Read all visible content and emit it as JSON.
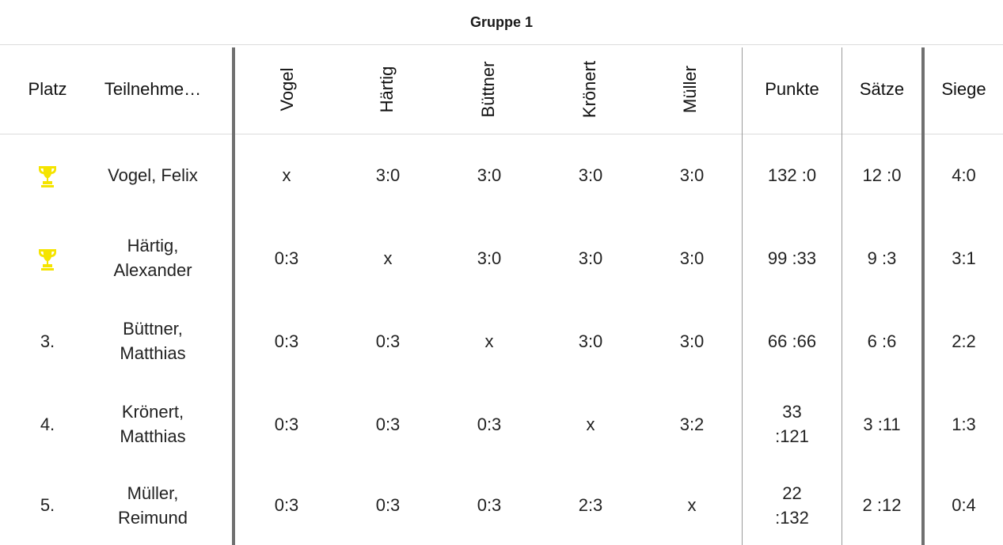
{
  "group": {
    "title": "Gruppe 1"
  },
  "columns": {
    "platz": "Platz",
    "teilnehmer": "Teilnehme…",
    "opponents": [
      "Vogel",
      "Härtig",
      "Büttner",
      "Krönert",
      "Müller"
    ],
    "punkte": "Punkte",
    "saetze": "Sätze",
    "siege": "Siege"
  },
  "colors": {
    "trophy": "#f5e400",
    "grid": "#dcdcdc",
    "divider": "#707070"
  },
  "rows": [
    {
      "place": "",
      "place_icon": "trophy-icon",
      "name_line1": "Vogel, Felix",
      "name_line2": "",
      "results": [
        "x",
        "3:0",
        "3:0",
        "3:0",
        "3:0"
      ],
      "punkte_line1": "132 :0",
      "punkte_line2": "",
      "saetze": "12 :0",
      "siege": "4:0"
    },
    {
      "place": "",
      "place_icon": "trophy-icon",
      "name_line1": "Härtig,",
      "name_line2": "Alexander",
      "results": [
        "0:3",
        "x",
        "3:0",
        "3:0",
        "3:0"
      ],
      "punkte_line1": "99 :33",
      "punkte_line2": "",
      "saetze": "9 :3",
      "siege": "3:1"
    },
    {
      "place": "3.",
      "place_icon": "",
      "name_line1": "Büttner,",
      "name_line2": "Matthias",
      "results": [
        "0:3",
        "0:3",
        "x",
        "3:0",
        "3:0"
      ],
      "punkte_line1": "66 :66",
      "punkte_line2": "",
      "saetze": "6 :6",
      "siege": "2:2"
    },
    {
      "place": "4.",
      "place_icon": "",
      "name_line1": "Krönert,",
      "name_line2": "Matthias",
      "results": [
        "0:3",
        "0:3",
        "0:3",
        "x",
        "3:2"
      ],
      "punkte_line1": "33",
      "punkte_line2": ":121",
      "saetze": "3 :11",
      "siege": "1:3"
    },
    {
      "place": "5.",
      "place_icon": "",
      "name_line1": "Müller,",
      "name_line2": "Reimund",
      "results": [
        "0:3",
        "0:3",
        "0:3",
        "2:3",
        "x"
      ],
      "punkte_line1": "22",
      "punkte_line2": ":132",
      "saetze": "2 :12",
      "siege": "0:4"
    }
  ]
}
